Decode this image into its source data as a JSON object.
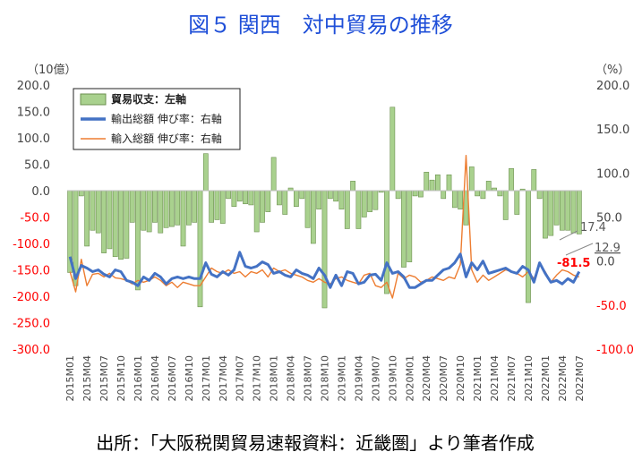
{
  "chart_data": {
    "type": "bar+line",
    "title": "図５ 関西　対中貿易の推移",
    "left_axis": {
      "unit": "（10億）",
      "range": [
        -300,
        200
      ],
      "ticks": [
        "200.0",
        "150.0",
        "100.0",
        "50.0",
        "0.0",
        "-50.0",
        "-100.0",
        "-150.0",
        "-200.0",
        "-250.0",
        "-300.0"
      ]
    },
    "right_axis": {
      "unit": "（%）",
      "range": [
        -100,
        200
      ],
      "ticks": [
        "200.0",
        "150.0",
        "100.0",
        "50.0",
        "0.0",
        "-50.0",
        "-100.0"
      ]
    },
    "x_labels": [
      "2015M01",
      "2015M04",
      "2015M07",
      "2015M10",
      "2016M01",
      "2016M04",
      "2016M07",
      "2016M10",
      "2017M01",
      "2017M04",
      "2017M07",
      "2017M10",
      "2018M01",
      "2018M04",
      "2018M07",
      "2018M10",
      "2019M01",
      "2019M04",
      "2019M07",
      "2019M10",
      "2020M01",
      "2020M04",
      "2020M07",
      "2020M10",
      "2021M01",
      "2021M04",
      "2021M07",
      "2021M10",
      "2022M01",
      "2022M04",
      "2022M07"
    ],
    "legend": {
      "position": "top-left",
      "entries": [
        {
          "name": "貿易収支：左軸",
          "type": "bar",
          "color": "#a9d18e"
        },
        {
          "name": "輸出総額 伸び率：右軸",
          "type": "line",
          "color": "#4472c4"
        },
        {
          "name": "輸入総額 伸び率：右軸",
          "type": "line",
          "color": "#ed7d31"
        }
      ]
    },
    "series": [
      {
        "name": "貿易収支：左軸",
        "axis": "left",
        "values": [
          -155,
          -180,
          -10,
          -105,
          -75,
          -80,
          -118,
          -110,
          -125,
          -130,
          -128,
          -60,
          -188,
          -75,
          -78,
          -60,
          -80,
          -70,
          -68,
          -65,
          -105,
          -65,
          -60,
          -220,
          70,
          -60,
          -55,
          -62,
          -15,
          -30,
          -20,
          -25,
          -27,
          -78,
          -60,
          -40,
          63,
          -27,
          -45,
          5,
          -30,
          -15,
          -70,
          -100,
          -35,
          -222,
          -15,
          -20,
          -35,
          -72,
          18,
          -72,
          -50,
          -40,
          -36,
          -3,
          -195,
          158,
          -15,
          -145,
          -135,
          -10,
          -12,
          35,
          20,
          30,
          -15,
          30,
          -32,
          -35,
          -65,
          45,
          -10,
          -15,
          18,
          5,
          -10,
          -55,
          42,
          -45,
          3,
          -212,
          40,
          -15,
          -90,
          -85,
          -65,
          -75,
          -75,
          -80,
          -82
        ],
        "color": "#a9d18e"
      },
      {
        "name": "輸出総額 伸び率：右軸",
        "axis": "right",
        "values": [
          5,
          -20,
          -5,
          -8,
          -12,
          -10,
          -15,
          -18,
          -10,
          -12,
          -22,
          -24,
          -28,
          -18,
          -22,
          -14,
          -18,
          -26,
          -20,
          -18,
          -20,
          -18,
          -20,
          -20,
          -2,
          -15,
          -18,
          -12,
          -16,
          -10,
          10,
          -6,
          -8,
          -6,
          -1,
          -4,
          -14,
          -12,
          -16,
          -18,
          -10,
          -14,
          -16,
          -20,
          -8,
          -16,
          -30,
          -16,
          -28,
          -12,
          -14,
          -26,
          -24,
          -16,
          -15,
          -22,
          -2,
          -14,
          -12,
          -18,
          -30,
          -30,
          -26,
          -22,
          -22,
          -16,
          -10,
          -8,
          -2,
          8,
          -18,
          -2,
          -10,
          0,
          -14,
          -12,
          -10,
          -8,
          -12,
          -14,
          -6,
          -10,
          -24,
          -2,
          -14,
          -24,
          -22,
          -26,
          -20,
          -24,
          -12
        ],
        "color": "#4472c4"
      },
      {
        "name": "輸入総額 伸び率：右軸",
        "axis": "right",
        "values": [
          -12,
          -35,
          2,
          -28,
          -15,
          -14,
          -18,
          -14,
          -19,
          -20,
          -22,
          -26,
          -22,
          -24,
          -22,
          -18,
          -22,
          -28,
          -24,
          -30,
          -24,
          -26,
          -28,
          -28,
          -18,
          -8,
          -12,
          -14,
          -10,
          -14,
          -12,
          -18,
          -12,
          -14,
          -10,
          -18,
          -8,
          -12,
          -10,
          -14,
          -16,
          -18,
          -22,
          -24,
          -20,
          -24,
          -26,
          -20,
          -18,
          -22,
          -24,
          -26,
          -16,
          -14,
          -28,
          -30,
          -24,
          -42,
          -14,
          -20,
          -16,
          -18,
          -24,
          -22,
          -18,
          -20,
          -22,
          -18,
          -20,
          -4,
          120,
          -10,
          -24,
          -16,
          -22,
          -18,
          -14,
          -10,
          -12,
          -14,
          -18,
          -12,
          -20,
          -4,
          -12,
          -24,
          -16,
          -10,
          -12,
          -16,
          -18
        ],
        "color": "#ed7d31"
      }
    ],
    "annotations": [
      {
        "text": "17.4",
        "color": "#595959"
      },
      {
        "text": "12.9",
        "color": "#595959",
        "underline": true
      },
      {
        "text": "-81.5",
        "color": "#ff0000",
        "bold": true
      }
    ]
  },
  "source": "出所：「大阪税関貿易速報資料：近畿圏」より筆者作成"
}
